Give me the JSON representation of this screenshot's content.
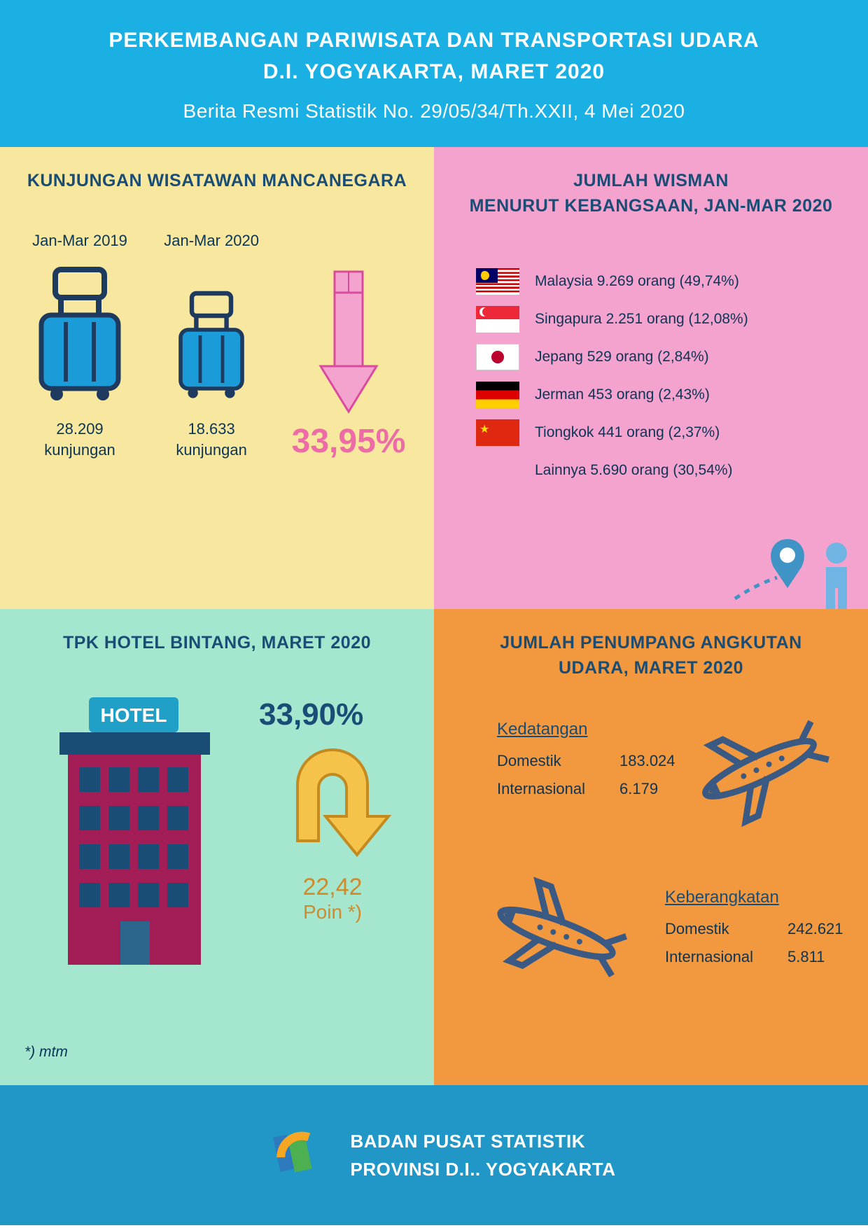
{
  "colors": {
    "header_bg": "#1bb0e4",
    "header_text": "#ffffff",
    "panel_tl_bg": "#f8e79e",
    "panel_tr_bg": "#f4a3cf",
    "panel_bl_bg": "#a5e6cf",
    "panel_br_bg": "#f2983e",
    "title_text": "#1a4d75",
    "body_text": "#0b3556",
    "big_pink": "#ed6ba7",
    "hotel_num": "#1a4d75",
    "poin": "#d08a2a",
    "footer_bg": "#2097c7",
    "footer_text": "#ffffff",
    "suitcase_body": "#1b9bd8",
    "suitcase_line": "#1f3a5f",
    "hotel_body": "#a31d56",
    "hotel_roof": "#1a4d75",
    "hotel_sign": "#20a0c6",
    "hotel_door": "#2d668d",
    "arrow_pink_fill": "#f4a3cf",
    "arrow_pink_stroke": "#d94b9e",
    "uarrow_fill": "#f5c24a",
    "uarrow_stroke": "#c28a1f",
    "plane": "#3a5a84",
    "traveler": "#6fb4e2",
    "pin": "#4094c5"
  },
  "header": {
    "line1": "PERKEMBANGAN PARIWISATA DAN TRANSPORTASI UDARA",
    "line2": "D.I. YOGYAKARTA, MARET 2020",
    "sub": "Berita Resmi Statistik No. 29/05/34/Th.XXII, 4 Mei 2020"
  },
  "tl": {
    "title": "KUNJUNGAN WISATAWAN MANCANEGARA",
    "p1": "Jan-Mar 2019",
    "p2": "Jan-Mar 2020",
    "v1a": "28.209",
    "v1b": "kunjungan",
    "v2a": "18.633",
    "v2b": "kunjungan",
    "pct": "33,95%"
  },
  "tr": {
    "title1": "JUMLAH WISMAN",
    "title2": "MENURUT KEBANGSAAN, JAN-MAR 2020",
    "rows": [
      {
        "text": "Malaysia  9.269 orang (49,74%)"
      },
      {
        "text": "Singapura 2.251 orang (12,08%)"
      },
      {
        "text": "Jepang  529 orang (2,84%)"
      },
      {
        "text": "Jerman 453 orang (2,43%)"
      },
      {
        "text": "Tiongkok 441 orang (2,37%)"
      },
      {
        "text": "Lainnya 5.690 orang (30,54%)"
      }
    ]
  },
  "bl": {
    "title": "TPK HOTEL BINTANG, MARET 2020",
    "num": "33,90%",
    "poin_val": "22,42",
    "poin_lab": "Poin *)",
    "footnote": "*) mtm",
    "hotel_sign": "HOTEL"
  },
  "br": {
    "title1": "JUMLAH PENUMPANG ANGKUTAN",
    "title2": "UDARA, MARET 2020",
    "arr": {
      "hdr": "Kedatangan",
      "dom_l": "Domestik",
      "dom_v": "183.024",
      "int_l": "Internasional",
      "int_v": "6.179"
    },
    "dep": {
      "hdr": "Keberangkatan",
      "dom_l": "Domestik",
      "dom_v": "242.621",
      "int_l": "Internasional",
      "int_v": "5.811"
    }
  },
  "footer": {
    "l1": "BADAN PUSAT STATISTIK",
    "l2": "PROVINSI D.I.. YOGYAKARTA"
  }
}
